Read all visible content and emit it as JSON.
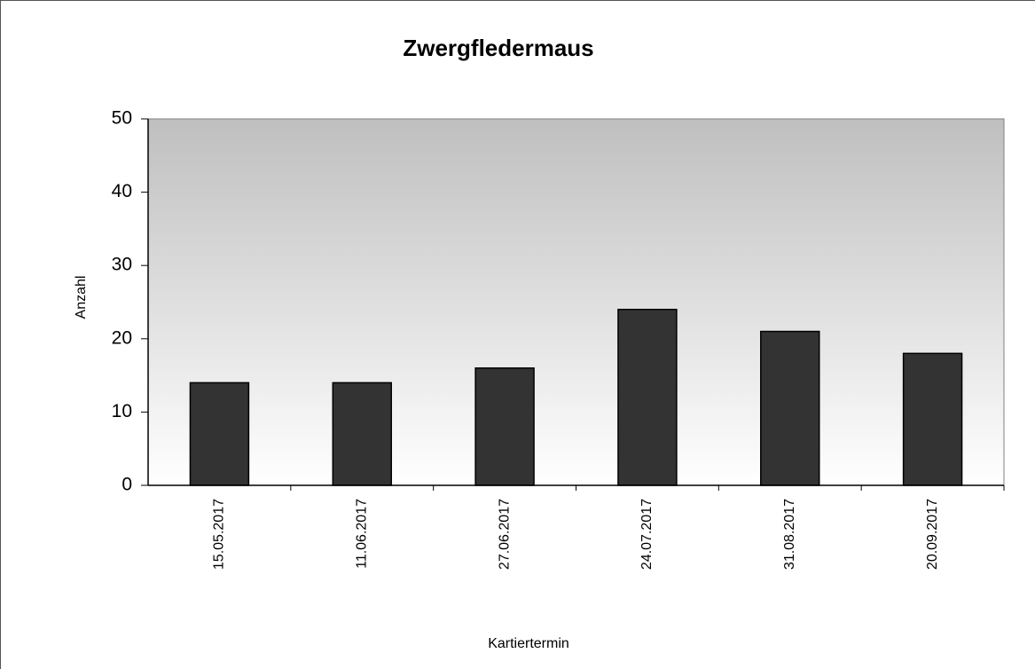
{
  "chart_data": {
    "type": "bar",
    "title": "Zwergfledermaus",
    "x_label": "Kartiertermin",
    "y_label": "Anzahl",
    "categories": [
      "15.05.2017",
      "11.06.2017",
      "27.06.2017",
      "24.07.2017",
      "31.08.2017",
      "20.09.2017"
    ],
    "values": [
      14,
      14,
      16,
      24,
      21,
      18
    ],
    "color": "#333333",
    "plot_background": [
      "#bfbfbf",
      "#ffffff"
    ],
    "ylim": [
      0,
      50
    ],
    "yticks": [
      0,
      10,
      20,
      30,
      40,
      50
    ],
    "grid": false
  }
}
